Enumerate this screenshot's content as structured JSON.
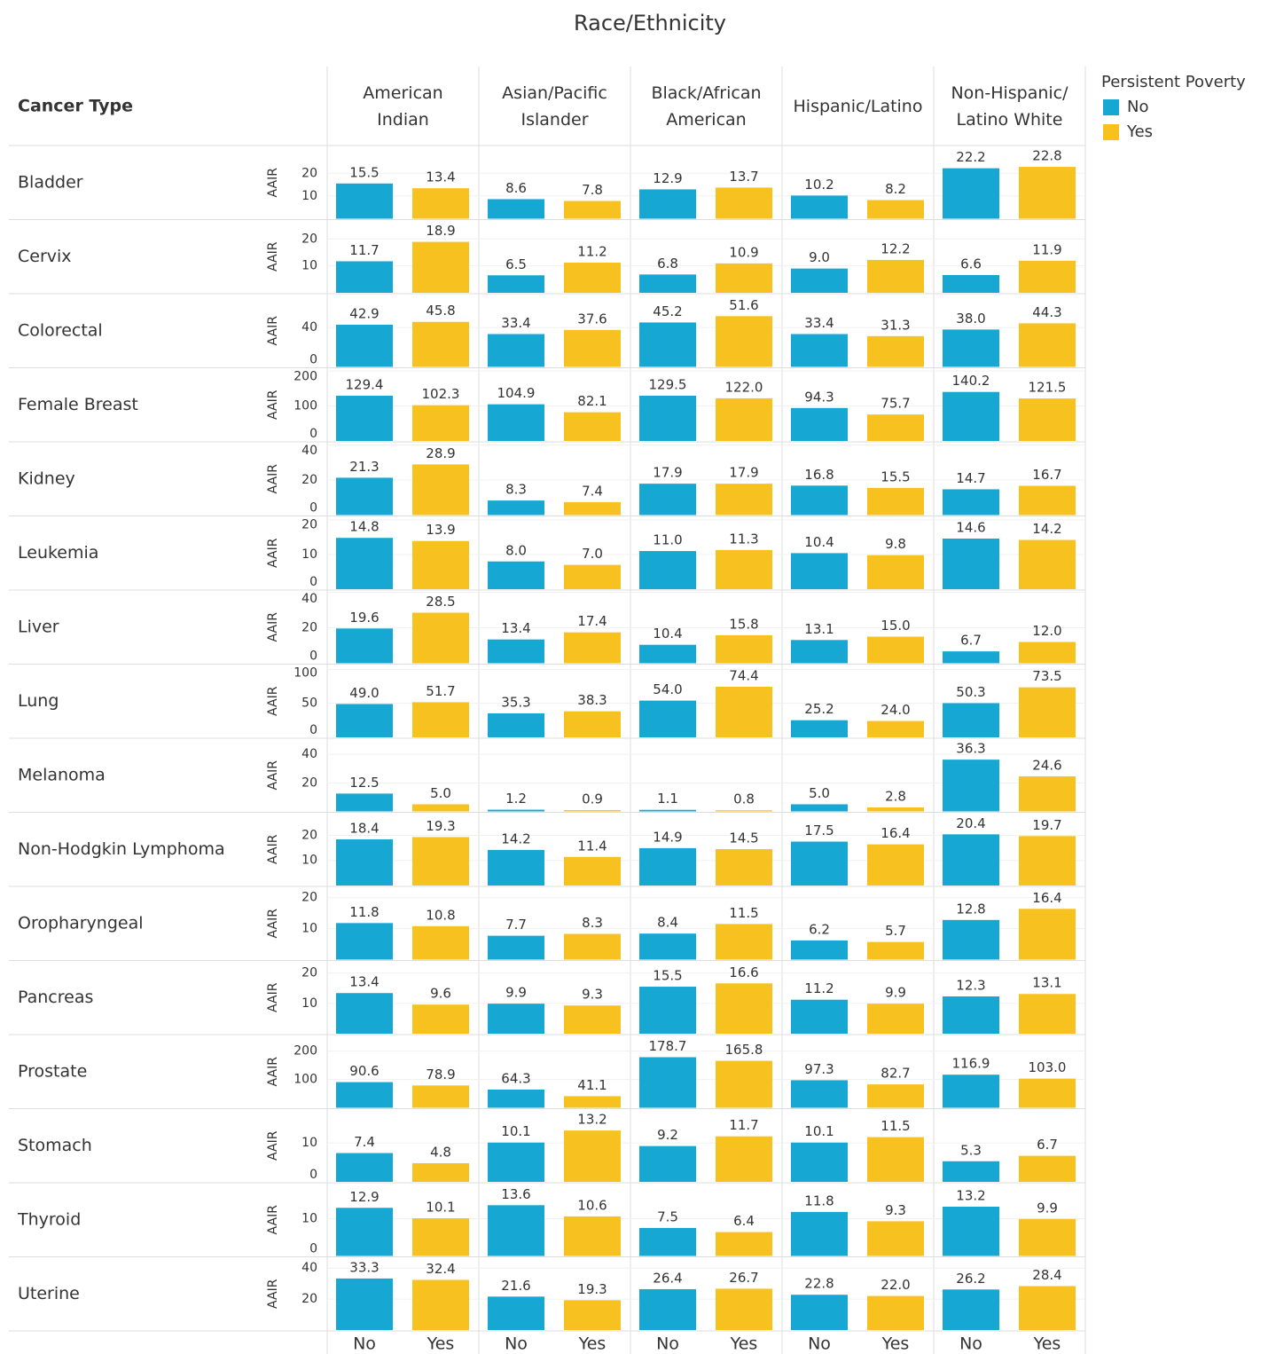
{
  "chart_data": {
    "type": "bar",
    "title": "Race/Ethnicity",
    "row_header": "Cancer Type",
    "y_label": "AAIR",
    "legend_title": "Persistent Poverty",
    "columns": [
      "American\nIndian",
      "Asian/Pacific\nIslander",
      "Black/African\nAmerican",
      "Hispanic/Latino",
      "Non-Hispanic/\nLatino White"
    ],
    "series": [
      {
        "name": "No",
        "color": "#17a7d3"
      },
      {
        "name": "Yes",
        "color": "#f7c11f"
      }
    ],
    "grid": true,
    "rows": [
      {
        "category": "Bladder",
        "ylim": [
          0,
          32
        ],
        "yticks": [
          10,
          20
        ],
        "values": [
          [
            15.5,
            13.4
          ],
          [
            8.6,
            7.8
          ],
          [
            12.9,
            13.7
          ],
          [
            10.2,
            8.2
          ],
          [
            22.2,
            22.8
          ]
        ],
        "value_labels": [
          [
            "15.5",
            "13.4"
          ],
          [
            "8.6",
            "7.8"
          ],
          [
            "12.9",
            "13.7"
          ],
          [
            "10.2",
            "8.2"
          ],
          [
            "22.2",
            "22.8"
          ]
        ]
      },
      {
        "category": "Cervix",
        "ylim": [
          0,
          27
        ],
        "yticks": [
          10,
          20
        ],
        "values": [
          [
            11.7,
            18.9
          ],
          [
            6.5,
            11.2
          ],
          [
            6.8,
            10.9
          ],
          [
            9.0,
            12.2
          ],
          [
            6.6,
            11.9
          ]
        ],
        "value_labels": [
          [
            "11.7",
            "18.9"
          ],
          [
            "6.5",
            "11.2"
          ],
          [
            "6.8",
            "10.9"
          ],
          [
            "9.0",
            "12.2"
          ],
          [
            "6.6",
            "11.9"
          ]
        ]
      },
      {
        "category": "Colorectal",
        "ylim": [
          0,
          74
        ],
        "yticks": [
          0,
          40
        ],
        "values": [
          [
            42.9,
            45.8
          ],
          [
            33.4,
            37.6
          ],
          [
            45.2,
            51.6
          ],
          [
            33.4,
            31.3
          ],
          [
            38.0,
            44.3
          ]
        ],
        "value_labels": [
          [
            "42.9",
            "45.8"
          ],
          [
            "33.4",
            "37.6"
          ],
          [
            "45.2",
            "51.6"
          ],
          [
            "33.4",
            "31.3"
          ],
          [
            "38.0",
            "44.3"
          ]
        ]
      },
      {
        "category": "Female Breast",
        "ylim": [
          0,
          208
        ],
        "yticks": [
          0,
          100,
          200
        ],
        "values": [
          [
            129.4,
            102.3
          ],
          [
            104.9,
            82.1
          ],
          [
            129.5,
            122.0
          ],
          [
            94.3,
            75.7
          ],
          [
            140.2,
            121.5
          ]
        ],
        "value_labels": [
          [
            "129.4",
            "102.3"
          ],
          [
            "104.9",
            "82.1"
          ],
          [
            "129.5",
            "122.0"
          ],
          [
            "94.3",
            "75.7"
          ],
          [
            "140.2",
            "121.5"
          ]
        ]
      },
      {
        "category": "Kidney",
        "ylim": [
          0,
          41.5
        ],
        "yticks": [
          0,
          20,
          40
        ],
        "values": [
          [
            21.3,
            28.9
          ],
          [
            8.3,
            7.4
          ],
          [
            17.9,
            17.9
          ],
          [
            16.8,
            15.5
          ],
          [
            14.7,
            16.7
          ]
        ],
        "value_labels": [
          [
            "21.3",
            "28.9"
          ],
          [
            "8.3",
            "7.4"
          ],
          [
            "17.9",
            "17.9"
          ],
          [
            "16.8",
            "15.5"
          ],
          [
            "14.7",
            "16.7"
          ]
        ]
      },
      {
        "category": "Leukemia",
        "ylim": [
          0,
          21
        ],
        "yticks": [
          0,
          10,
          20
        ],
        "values": [
          [
            14.8,
            13.9
          ],
          [
            8.0,
            7.0
          ],
          [
            11.0,
            11.3
          ],
          [
            10.4,
            9.8
          ],
          [
            14.6,
            14.2
          ]
        ],
        "value_labels": [
          [
            "14.8",
            "13.9"
          ],
          [
            "8.0",
            "7.0"
          ],
          [
            "11.0",
            "11.3"
          ],
          [
            "10.4",
            "9.8"
          ],
          [
            "14.6",
            "14.2"
          ]
        ]
      },
      {
        "category": "Liver",
        "ylim": [
          0,
          41
        ],
        "yticks": [
          0,
          20,
          40
        ],
        "values": [
          [
            19.6,
            28.5
          ],
          [
            13.4,
            17.4
          ],
          [
            10.4,
            15.8
          ],
          [
            13.1,
            15.0
          ],
          [
            6.7,
            12.0
          ]
        ],
        "value_labels": [
          [
            "19.6",
            "28.5"
          ],
          [
            "13.4",
            "17.4"
          ],
          [
            "10.4",
            "15.8"
          ],
          [
            "13.1",
            "15.0"
          ],
          [
            "6.7",
            "12.0"
          ]
        ]
      },
      {
        "category": "Lung",
        "ylim": [
          0,
          107
        ],
        "yticks": [
          0,
          50,
          100
        ],
        "values": [
          [
            49.0,
            51.7
          ],
          [
            35.3,
            38.3
          ],
          [
            54.0,
            74.4
          ],
          [
            25.2,
            24.0
          ],
          [
            50.3,
            73.5
          ]
        ],
        "value_labels": [
          [
            "49.0",
            "51.7"
          ],
          [
            "35.3",
            "38.3"
          ],
          [
            "54.0",
            "74.4"
          ],
          [
            "25.2",
            "24.0"
          ],
          [
            "50.3",
            "73.5"
          ]
        ]
      },
      {
        "category": "Melanoma",
        "ylim": [
          0,
          51
        ],
        "yticks": [
          20,
          40
        ],
        "values": [
          [
            12.5,
            5.0
          ],
          [
            1.2,
            0.9
          ],
          [
            1.1,
            0.8
          ],
          [
            5.0,
            2.8
          ],
          [
            36.3,
            24.6
          ]
        ],
        "value_labels": [
          [
            "12.5",
            "5.0"
          ],
          [
            "1.2",
            "0.9"
          ],
          [
            "1.1",
            "0.8"
          ],
          [
            "5.0",
            "2.8"
          ],
          [
            "36.3",
            "24.6"
          ]
        ]
      },
      {
        "category": "Non-Hodgkin Lymphoma",
        "ylim": [
          0,
          29
        ],
        "yticks": [
          10,
          20
        ],
        "values": [
          [
            18.4,
            19.3
          ],
          [
            14.2,
            11.4
          ],
          [
            14.9,
            14.5
          ],
          [
            17.5,
            16.4
          ],
          [
            20.4,
            19.7
          ]
        ],
        "value_labels": [
          [
            "18.4",
            "19.3"
          ],
          [
            "14.2",
            "11.4"
          ],
          [
            "14.9",
            "14.5"
          ],
          [
            "17.5",
            "16.4"
          ],
          [
            "20.4",
            "19.7"
          ]
        ]
      },
      {
        "category": "Oropharyngeal",
        "ylim": [
          0,
          23.5
        ],
        "yticks": [
          10,
          20
        ],
        "values": [
          [
            11.8,
            10.8
          ],
          [
            7.7,
            8.3
          ],
          [
            8.4,
            11.5
          ],
          [
            6.2,
            5.7
          ],
          [
            12.8,
            16.4
          ]
        ],
        "value_labels": [
          [
            "11.8",
            "10.8"
          ],
          [
            "7.7",
            "8.3"
          ],
          [
            "8.4",
            "11.5"
          ],
          [
            "6.2",
            "5.7"
          ],
          [
            "12.8",
            "16.4"
          ]
        ]
      },
      {
        "category": "Pancreas",
        "ylim": [
          0,
          24
        ],
        "yticks": [
          10,
          20
        ],
        "values": [
          [
            13.4,
            9.6
          ],
          [
            9.9,
            9.3
          ],
          [
            15.5,
            16.6
          ],
          [
            11.2,
            9.9
          ],
          [
            12.3,
            13.1
          ]
        ],
        "value_labels": [
          [
            "13.4",
            "9.6"
          ],
          [
            "9.9",
            "9.3"
          ],
          [
            "15.5",
            "16.6"
          ],
          [
            "11.2",
            "9.9"
          ],
          [
            "12.3",
            "13.1"
          ]
        ]
      },
      {
        "category": "Prostate",
        "ylim": [
          0,
          257
        ],
        "yticks": [
          100,
          200
        ],
        "values": [
          [
            90.6,
            78.9
          ],
          [
            64.3,
            41.1
          ],
          [
            178.7,
            165.8
          ],
          [
            97.3,
            82.7
          ],
          [
            116.9,
            103.0
          ]
        ],
        "value_labels": [
          [
            "90.6",
            "78.9"
          ],
          [
            "64.3",
            "41.1"
          ],
          [
            "178.7",
            "165.8"
          ],
          [
            "97.3",
            "82.7"
          ],
          [
            "116.9",
            "103.0"
          ]
        ]
      },
      {
        "category": "Stomach",
        "ylim": [
          0,
          18.7
        ],
        "yticks": [
          0,
          10
        ],
        "values": [
          [
            7.4,
            4.8
          ],
          [
            10.1,
            13.2
          ],
          [
            9.2,
            11.7
          ],
          [
            10.1,
            11.5
          ],
          [
            5.3,
            6.7
          ]
        ],
        "value_labels": [
          [
            "7.4",
            "4.8"
          ],
          [
            "10.1",
            "13.2"
          ],
          [
            "9.2",
            "11.7"
          ],
          [
            "10.1",
            "11.5"
          ],
          [
            "5.3",
            "6.7"
          ]
        ]
      },
      {
        "category": "Thyroid",
        "ylim": [
          0,
          19.5
        ],
        "yticks": [
          0,
          10
        ],
        "values": [
          [
            12.9,
            10.1
          ],
          [
            13.6,
            10.6
          ],
          [
            7.5,
            6.4
          ],
          [
            11.8,
            9.3
          ],
          [
            13.2,
            9.9
          ]
        ],
        "value_labels": [
          [
            "12.9",
            "10.1"
          ],
          [
            "13.6",
            "10.6"
          ],
          [
            "7.5",
            "6.4"
          ],
          [
            "11.8",
            "9.3"
          ],
          [
            "13.2",
            "9.9"
          ]
        ]
      },
      {
        "category": "Uterine",
        "ylim": [
          0,
          47
        ],
        "yticks": [
          20,
          40
        ],
        "values": [
          [
            33.3,
            32.4
          ],
          [
            21.6,
            19.3
          ],
          [
            26.4,
            26.7
          ],
          [
            22.8,
            22.0
          ],
          [
            26.2,
            28.4
          ]
        ],
        "value_labels": [
          [
            "33.3",
            "32.4"
          ],
          [
            "21.6",
            "19.3"
          ],
          [
            "26.4",
            "26.7"
          ],
          [
            "22.8",
            "22.0"
          ],
          [
            "26.2",
            "28.4"
          ]
        ]
      }
    ]
  }
}
